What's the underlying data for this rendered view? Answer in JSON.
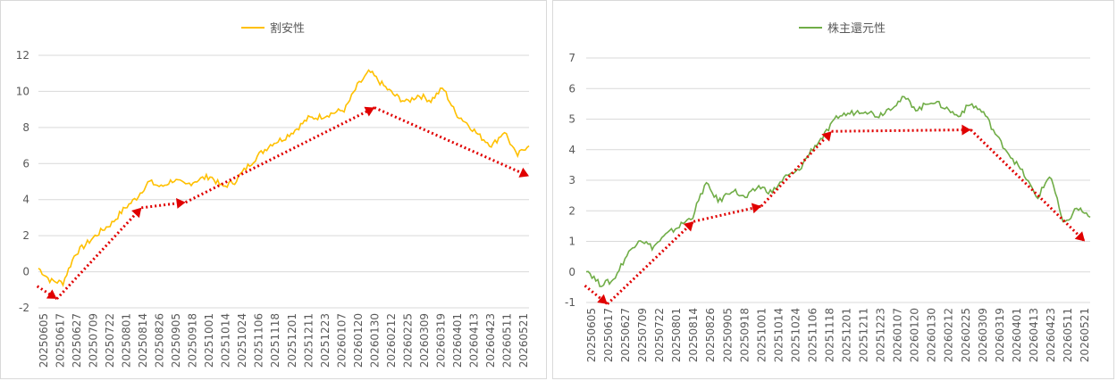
{
  "chart_data": [
    {
      "type": "line",
      "series": [
        {
          "name": "割安性",
          "color": "#ffc000"
        }
      ],
      "ylim": [
        -2,
        12
      ],
      "yticks": [
        -2,
        0,
        2,
        4,
        6,
        8,
        10,
        12
      ],
      "grid": true,
      "legend": "top-center",
      "xlabels": [
        "20250605",
        "20250617",
        "20250627",
        "20250709",
        "20250722",
        "20250801",
        "20250814",
        "20250826",
        "20250905",
        "20250918",
        "20251001",
        "20251014",
        "20251024",
        "20251106",
        "20251118",
        "20251201",
        "20251211",
        "20251223",
        "20260107",
        "20260120",
        "20260130",
        "20260212",
        "20260225",
        "20260309",
        "20260319",
        "20260401",
        "20260413",
        "20260423",
        "20260511",
        "20260521"
      ],
      "anchors": [
        [
          0,
          0.2
        ],
        [
          1,
          -0.5
        ],
        [
          2,
          -0.6
        ],
        [
          3,
          1.0
        ],
        [
          4,
          1.6
        ],
        [
          5,
          2.2
        ],
        [
          6,
          2.7
        ],
        [
          7,
          3.5
        ],
        [
          8,
          4.1
        ],
        [
          9,
          5.0
        ],
        [
          10,
          4.7
        ],
        [
          11,
          5.1
        ],
        [
          12,
          4.8
        ],
        [
          13,
          5.1
        ],
        [
          14,
          5.3
        ],
        [
          15,
          4.7
        ],
        [
          16,
          5.0
        ],
        [
          17,
          5.8
        ],
        [
          18,
          6.5
        ],
        [
          19,
          7.1
        ],
        [
          20,
          7.4
        ],
        [
          21,
          7.9
        ],
        [
          22,
          8.5
        ],
        [
          23,
          8.6
        ],
        [
          24,
          8.8
        ],
        [
          25,
          9.0
        ],
        [
          26,
          10.3
        ],
        [
          27,
          11.1
        ],
        [
          28,
          10.4
        ],
        [
          29,
          9.8
        ],
        [
          30,
          9.4
        ],
        [
          31,
          9.8
        ],
        [
          32,
          9.5
        ],
        [
          33,
          10.2
        ],
        [
          34,
          8.8
        ],
        [
          35,
          8.2
        ],
        [
          36,
          7.5
        ],
        [
          37,
          7.0
        ],
        [
          38,
          7.8
        ],
        [
          39,
          6.4
        ],
        [
          40,
          7.1
        ]
      ],
      "trend_arrows": [
        {
          "from": [
            -0.1,
            -0.8
          ],
          "to": [
            1.5,
            -1.5
          ]
        },
        {
          "from": [
            1.5,
            -1.5
          ],
          "to": [
            8.4,
            3.55
          ]
        },
        {
          "from": [
            8.4,
            3.55
          ],
          "to": [
            12.0,
            3.85
          ]
        },
        {
          "from": [
            12.0,
            3.85
          ],
          "to": [
            27.4,
            9.1
          ]
        },
        {
          "from": [
            27.4,
            9.1
          ],
          "to": [
            40.0,
            5.3
          ]
        }
      ]
    },
    {
      "type": "line",
      "series": [
        {
          "name": "株主還元性",
          "color": "#70ad47"
        }
      ],
      "ylim": [
        -1,
        7
      ],
      "yticks": [
        -1,
        0,
        1,
        2,
        3,
        4,
        5,
        6,
        7
      ],
      "grid": true,
      "legend": "top-center",
      "xlabels": [
        "20250605",
        "20250617",
        "20250627",
        "20250709",
        "20250722",
        "20250801",
        "20250814",
        "20250826",
        "20250905",
        "20250918",
        "20251001",
        "20251014",
        "20251024",
        "20251106",
        "20251118",
        "20251201",
        "20251211",
        "20251223",
        "20260107",
        "20260120",
        "20260130",
        "20260212",
        "20260225",
        "20260309",
        "20260319",
        "20260401",
        "20260413",
        "20260423",
        "20260511",
        "20260521"
      ],
      "anchors": [
        [
          0,
          0.1
        ],
        [
          1,
          -0.4
        ],
        [
          2,
          -0.3
        ],
        [
          3,
          0.5
        ],
        [
          4,
          1.1
        ],
        [
          5,
          0.8
        ],
        [
          6,
          1.2
        ],
        [
          7,
          1.5
        ],
        [
          8,
          1.8
        ],
        [
          9,
          2.9
        ],
        [
          10,
          2.3
        ],
        [
          11,
          2.7
        ],
        [
          12,
          2.4
        ],
        [
          13,
          2.8
        ],
        [
          14,
          2.6
        ],
        [
          15,
          3.1
        ],
        [
          16,
          3.3
        ],
        [
          17,
          4.0
        ],
        [
          18,
          4.5
        ],
        [
          19,
          5.1
        ],
        [
          20,
          5.2
        ],
        [
          21,
          5.3
        ],
        [
          22,
          5.1
        ],
        [
          23,
          5.4
        ],
        [
          24,
          5.7
        ],
        [
          25,
          5.3
        ],
        [
          26,
          5.6
        ],
        [
          27,
          5.4
        ],
        [
          28,
          5.1
        ],
        [
          29,
          5.5
        ],
        [
          30,
          5.2
        ],
        [
          31,
          4.4
        ],
        [
          32,
          3.8
        ],
        [
          33,
          3.2
        ],
        [
          34,
          2.4
        ],
        [
          35,
          3.2
        ],
        [
          36,
          1.5
        ],
        [
          37,
          2.1
        ],
        [
          38,
          1.8
        ]
      ],
      "trend_arrows": [
        {
          "from": [
            -0.1,
            -0.45
          ],
          "to": [
            1.6,
            -1.05
          ]
        },
        {
          "from": [
            1.6,
            -1.05
          ],
          "to": [
            8.1,
            1.65
          ]
        },
        {
          "from": [
            8.1,
            1.65
          ],
          "to": [
            13.2,
            2.15
          ]
        },
        {
          "from": [
            13.2,
            2.15
          ],
          "to": [
            18.5,
            4.6
          ]
        },
        {
          "from": [
            18.5,
            4.6
          ],
          "to": [
            29.0,
            4.65
          ]
        },
        {
          "from": [
            29.0,
            4.65
          ],
          "to": [
            37.6,
            1.0
          ]
        }
      ]
    }
  ]
}
